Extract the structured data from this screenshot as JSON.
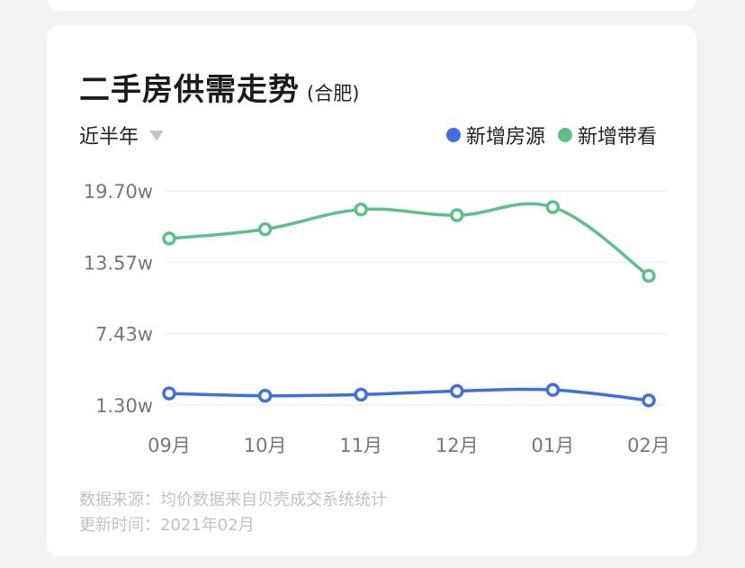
{
  "header": {
    "title": "二手房供需走势",
    "city": "(合肥)",
    "range_label": "近半年"
  },
  "chart_data": {
    "type": "line",
    "categories": [
      "09月",
      "10月",
      "11月",
      "12月",
      "01月",
      "02月"
    ],
    "y_ticks": [
      "19.70w",
      "13.57w",
      "7.43w",
      "1.30w"
    ],
    "ylim": [
      1.3,
      19.7
    ],
    "series": [
      {
        "name": "新增房源",
        "color": "#3f6fe0",
        "values": [
          2.3,
          2.1,
          2.2,
          2.5,
          2.6,
          1.7
        ]
      },
      {
        "name": "新增带看",
        "color": "#5dc08b",
        "values": [
          15.6,
          16.4,
          18.1,
          17.6,
          18.3,
          12.4
        ]
      }
    ]
  },
  "footer": {
    "source": "数据来源：均价数据来自贝壳成交系统统计",
    "updated": "更新时间：2021年02月"
  }
}
